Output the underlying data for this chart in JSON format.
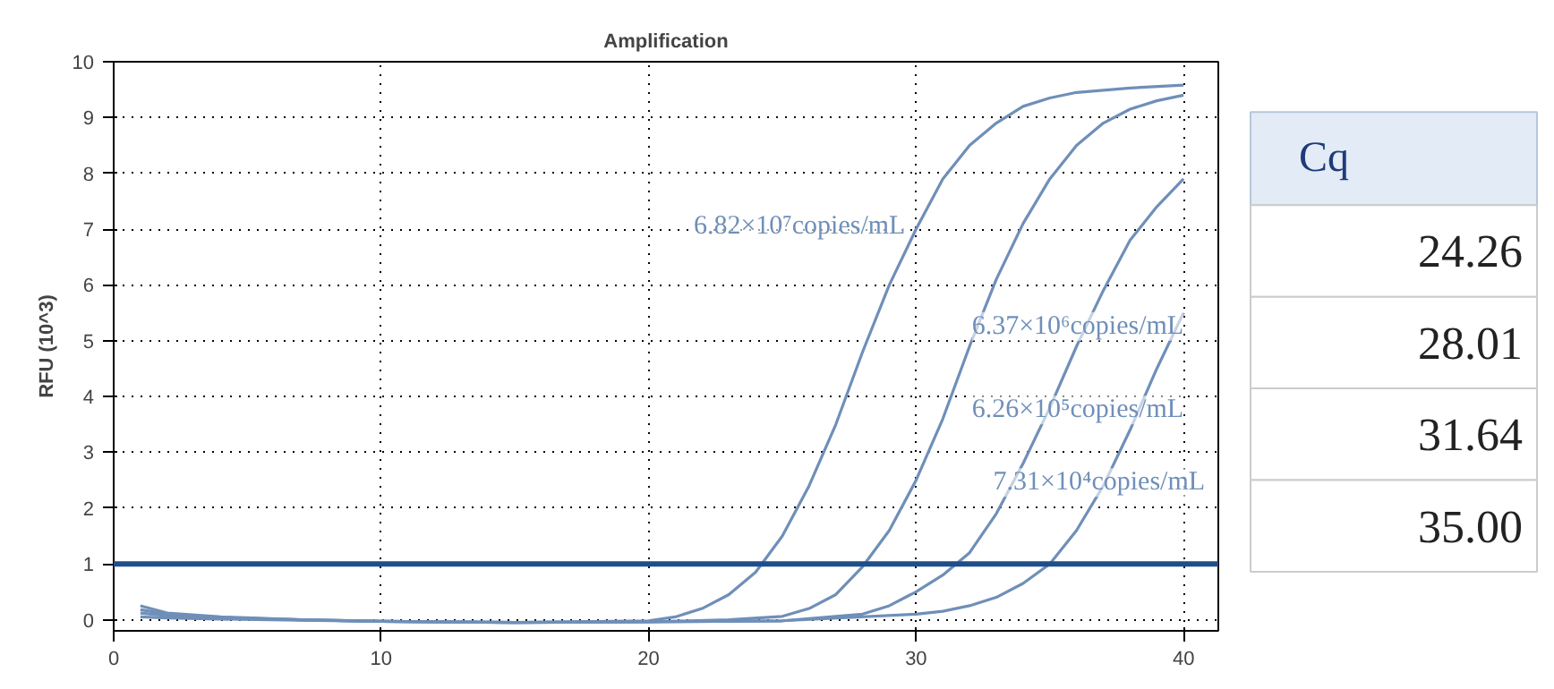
{
  "chart_data": {
    "type": "line",
    "title": "Amplification",
    "ylabel": "RFU (10^3)",
    "xlim": [
      0,
      41.3
    ],
    "ylim": [
      -0.2,
      10
    ],
    "xticks": [
      0,
      10,
      20,
      30,
      40
    ],
    "yticks": [
      0,
      1,
      2,
      3,
      4,
      5,
      6,
      7,
      8,
      9,
      10
    ],
    "grid": true,
    "line_style": "solid",
    "series": [
      {
        "name": "6.82×10⁷copies/mL",
        "color": "#6f8fb8",
        "x": [
          1,
          2,
          4,
          7,
          10,
          15,
          20,
          21,
          22,
          23,
          24,
          25,
          26,
          27,
          28,
          29,
          30,
          31,
          32,
          33,
          34,
          35,
          36,
          38,
          40
        ],
        "values": [
          0.25,
          0.12,
          0.05,
          0,
          -0.03,
          -0.05,
          -0.02,
          0.05,
          0.2,
          0.45,
          0.85,
          1.5,
          2.4,
          3.5,
          4.8,
          6.0,
          7.0,
          7.9,
          8.5,
          8.9,
          9.2,
          9.35,
          9.45,
          9.53,
          9.58
        ]
      },
      {
        "name": "6.37×10⁶copies/mL",
        "color": "#6f8fb8",
        "x": [
          1,
          2,
          4,
          7,
          10,
          15,
          20,
          23,
          25,
          26,
          27,
          28,
          29,
          30,
          31,
          32,
          33,
          34,
          35,
          36,
          37,
          38,
          39,
          40
        ],
        "values": [
          0.18,
          0.1,
          0.04,
          0,
          -0.03,
          -0.05,
          -0.04,
          0,
          0.06,
          0.2,
          0.45,
          0.95,
          1.6,
          2.5,
          3.6,
          4.9,
          6.1,
          7.1,
          7.9,
          8.5,
          8.9,
          9.15,
          9.3,
          9.4
        ]
      },
      {
        "name": "6.26×10⁵copies/mL",
        "color": "#6f8fb8",
        "x": [
          1,
          2,
          4,
          7,
          10,
          15,
          20,
          25,
          28,
          29,
          30,
          31,
          32,
          33,
          34,
          35,
          36,
          37,
          38,
          39,
          40
        ],
        "values": [
          0.12,
          0.07,
          0.03,
          0,
          -0.03,
          -0.05,
          -0.04,
          -0.02,
          0.1,
          0.25,
          0.5,
          0.8,
          1.2,
          1.9,
          2.8,
          3.8,
          4.9,
          5.9,
          6.8,
          7.4,
          7.9
        ]
      },
      {
        "name": "7.31×10⁴copies/mL",
        "color": "#6f8fb8",
        "x": [
          1,
          2,
          4,
          7,
          10,
          15,
          20,
          25,
          30,
          31,
          32,
          33,
          34,
          35,
          36,
          37,
          38,
          39,
          40
        ],
        "values": [
          0.05,
          0.03,
          0.01,
          -0.01,
          -0.03,
          -0.05,
          -0.04,
          -0.02,
          0.1,
          0.15,
          0.25,
          0.4,
          0.65,
          1.0,
          1.6,
          2.4,
          3.4,
          4.5,
          5.5
        ]
      }
    ],
    "ref_lines": [
      {
        "axis": "y",
        "value": 1,
        "color": "#1f4e8c"
      }
    ],
    "annotations": [
      "Cq",
      "24.26",
      "28.01",
      "31.64",
      "35.00"
    ]
  }
}
